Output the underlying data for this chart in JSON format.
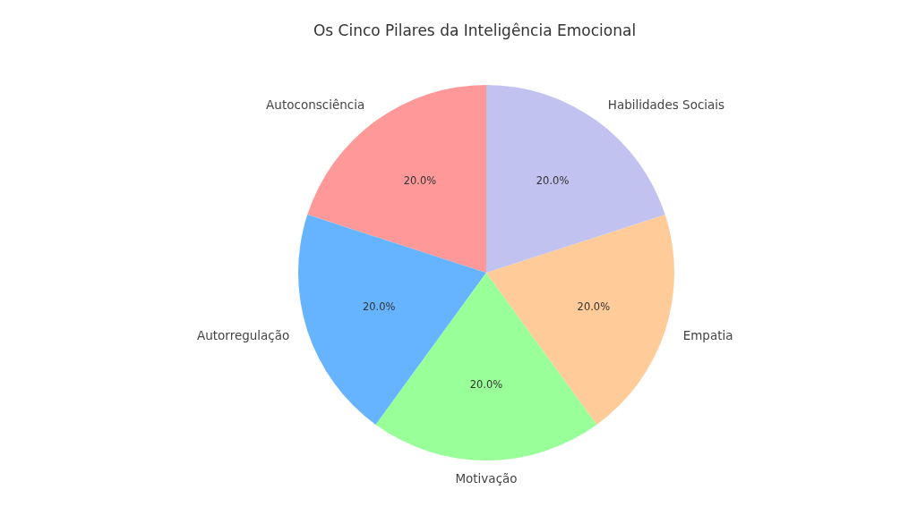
{
  "chart_data": {
    "type": "pie",
    "title": "Os Cinco Pilares da Inteligência Emocional",
    "categories": [
      "Autoconsciência",
      "Autorregulação",
      "Motivação",
      "Empatia",
      "Habilidades Sociais"
    ],
    "values": [
      20,
      20,
      20,
      20,
      20
    ],
    "value_labels": [
      "20.0%",
      "20.0%",
      "20.0%",
      "20.0%",
      "20.0%"
    ],
    "colors": [
      "#ff9999",
      "#66b3ff",
      "#99ff99",
      "#ffcc99",
      "#c2c2f0"
    ],
    "legend": false
  }
}
